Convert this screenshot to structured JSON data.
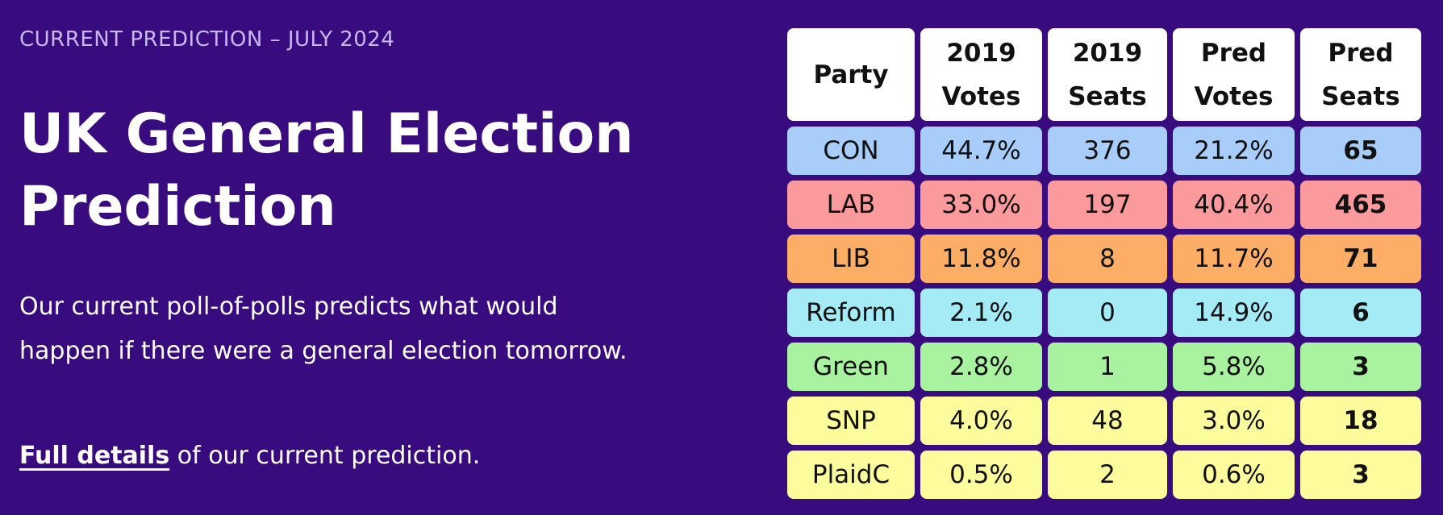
{
  "page": {
    "eyebrow": "CURRENT PREDICTION – JULY 2024",
    "title": "UK General Election Prediction",
    "description": "Our current poll-of-polls predicts what would happen if there were a general election tomorrow.",
    "details_link_label": "Full details",
    "details_suffix": " of our current prediction."
  },
  "table": {
    "headers": [
      {
        "line1": "Party",
        "line2": ""
      },
      {
        "line1": "2019",
        "line2": "Votes"
      },
      {
        "line1": "2019",
        "line2": "Seats"
      },
      {
        "line1": "Pred",
        "line2": "Votes"
      },
      {
        "line1": "Pred",
        "line2": "Seats"
      }
    ],
    "rows": [
      {
        "party": "CON",
        "votes_2019": "44.7%",
        "seats_2019": "376",
        "pred_votes": "21.2%",
        "pred_seats": "65",
        "color": "#a7cdf8"
      },
      {
        "party": "LAB",
        "votes_2019": "33.0%",
        "seats_2019": "197",
        "pred_votes": "40.4%",
        "pred_seats": "465",
        "color": "#fb9a9c"
      },
      {
        "party": "LIB",
        "votes_2019": "11.8%",
        "seats_2019": "8",
        "pred_votes": "11.7%",
        "pred_seats": "71",
        "color": "#fcae67"
      },
      {
        "party": "Reform",
        "votes_2019": "2.1%",
        "seats_2019": "0",
        "pred_votes": "14.9%",
        "pred_seats": "6",
        "color": "#a5ebf5"
      },
      {
        "party": "Green",
        "votes_2019": "2.8%",
        "seats_2019": "1",
        "pred_votes": "5.8%",
        "pred_seats": "3",
        "color": "#a9f29f"
      },
      {
        "party": "SNP",
        "votes_2019": "4.0%",
        "seats_2019": "48",
        "pred_votes": "3.0%",
        "pred_seats": "18",
        "color": "#fcfc9c"
      },
      {
        "party": "PlaidC",
        "votes_2019": "0.5%",
        "seats_2019": "2",
        "pred_votes": "0.6%",
        "pred_seats": "3",
        "color": "#fcfc9c"
      }
    ]
  },
  "colors": {
    "background": "#380b7e",
    "eyebrow": "#c7b8f3",
    "header_cell": "#ffffff"
  }
}
